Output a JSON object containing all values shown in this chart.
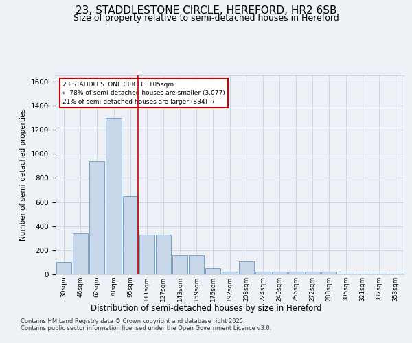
{
  "title1": "23, STADDLESTONE CIRCLE, HEREFORD, HR2 6SB",
  "title2": "Size of property relative to semi-detached houses in Hereford",
  "xlabel": "Distribution of semi-detached houses by size in Hereford",
  "ylabel": "Number of semi-detached properties",
  "bin_labels": [
    "30sqm",
    "46sqm",
    "62sqm",
    "78sqm",
    "95sqm",
    "111sqm",
    "127sqm",
    "143sqm",
    "159sqm",
    "175sqm",
    "192sqm",
    "208sqm",
    "224sqm",
    "240sqm",
    "256sqm",
    "272sqm",
    "288sqm",
    "305sqm",
    "321sqm",
    "337sqm",
    "353sqm"
  ],
  "bar_values": [
    100,
    340,
    940,
    1300,
    650,
    330,
    330,
    160,
    160,
    50,
    20,
    110,
    25,
    20,
    20,
    20,
    20,
    5,
    5,
    5,
    5
  ],
  "bar_color": "#c8d8ea",
  "bar_edgecolor": "#6898c0",
  "vline_x_index": 4,
  "vline_color": "#cc0000",
  "annotation_line1": "23 STADDLESTONE CIRCLE: 105sqm",
  "annotation_line2": "← 78% of semi-detached houses are smaller (3,077)",
  "annotation_line3": "21% of semi-detached houses are larger (834) →",
  "annotation_box_edgecolor": "#cc0000",
  "ylim": [
    0,
    1650
  ],
  "yticks": [
    0,
    200,
    400,
    600,
    800,
    1000,
    1200,
    1400,
    1600
  ],
  "footer1": "Contains HM Land Registry data © Crown copyright and database right 2025.",
  "footer2": "Contains public sector information licensed under the Open Government Licence v3.0.",
  "bg_color": "#eef2f7",
  "title1_fontsize": 11,
  "title2_fontsize": 9
}
